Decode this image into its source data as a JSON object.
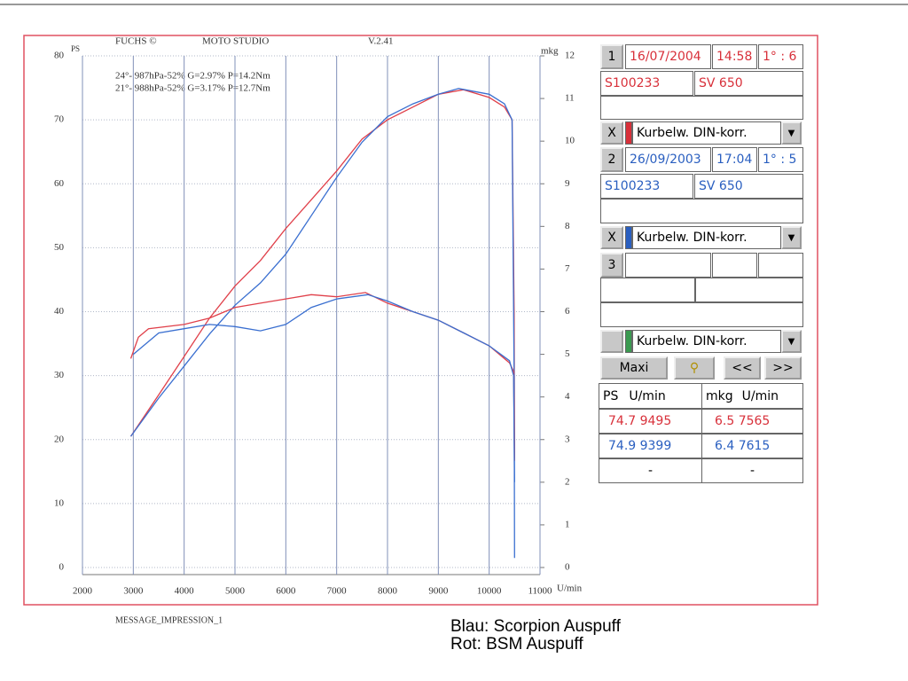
{
  "header": {
    "brand": "FUCHS ©",
    "studio": "MOTO STUDIO",
    "version": "V.2.41"
  },
  "chart_data": {
    "type": "line",
    "y_label": "PS",
    "y2_label": "mkg",
    "x_label": "U/min",
    "annotations": [
      {
        "text": "24°- 987hPa-52% G=2.97% P=14.2Nm",
        "color": "#e0404a"
      },
      {
        "text": "21°- 988hPa-52% G=3.17% P=12.7Nm",
        "color": "#3a6fd0"
      }
    ],
    "xlim": [
      2000,
      11000
    ],
    "xticks": [
      2000,
      3000,
      4000,
      5000,
      6000,
      7000,
      8000,
      9000,
      10000,
      11000
    ],
    "ylim": [
      0,
      80
    ],
    "yticks": [
      0,
      10,
      20,
      30,
      40,
      50,
      60,
      70,
      80
    ],
    "y2lim": [
      0,
      12
    ],
    "y2ticks": [
      0,
      1,
      2,
      3,
      4,
      5,
      6,
      7,
      8,
      9,
      10,
      11,
      12
    ],
    "grid": true,
    "series": [
      {
        "color": "#e0404a",
        "x": [
          2950,
          3500,
          4000,
          4500,
          5000,
          5500,
          6000,
          6500,
          7000,
          7500,
          8000,
          8500,
          9000,
          9495,
          10000,
          10300,
          10450,
          10490,
          10500
        ],
        "values": [
          20.5,
          27,
          33,
          39,
          44,
          48,
          53,
          57.5,
          62,
          67,
          70,
          72,
          74,
          74.7,
          73.5,
          72,
          70,
          40,
          17
        ]
      },
      {
        "color": "#3a6fd0",
        "x": [
          2950,
          3500,
          4000,
          4500,
          5000,
          5500,
          6000,
          6500,
          7000,
          7500,
          8000,
          8500,
          9000,
          9399,
          10000,
          10300,
          10450,
          10490,
          10500
        ],
        "values": [
          20.5,
          26.5,
          31.5,
          36.5,
          41,
          44.5,
          49,
          55,
          61,
          66.5,
          70.5,
          72.5,
          74,
          74.9,
          74,
          72.5,
          70,
          30,
          1.5
        ]
      },
      {
        "axis": "y2",
        "color": "#e0404a",
        "x": [
          2950,
          3100,
          3300,
          4000,
          4500,
          5000,
          5500,
          6000,
          6500,
          7000,
          7565,
          8000,
          8500,
          9000,
          9500,
          10000,
          10400,
          10480,
          10500
        ],
        "values": [
          4.9,
          5.4,
          5.6,
          5.7,
          5.85,
          6.1,
          6.2,
          6.3,
          6.4,
          6.35,
          6.45,
          6.2,
          6.0,
          5.8,
          5.5,
          5.2,
          4.8,
          4.6,
          2.5
        ]
      },
      {
        "axis": "y2",
        "color": "#3a6fd0",
        "x": [
          3000,
          3500,
          4000,
          4500,
          5000,
          5500,
          6000,
          6500,
          7000,
          7615,
          8000,
          8500,
          9000,
          9500,
          10000,
          10400,
          10480,
          10500
        ],
        "values": [
          5.0,
          5.5,
          5.6,
          5.7,
          5.65,
          5.55,
          5.7,
          6.1,
          6.3,
          6.4,
          6.25,
          6.0,
          5.8,
          5.5,
          5.2,
          4.85,
          4.5,
          2.0
        ]
      }
    ]
  },
  "panel": {
    "run1": {
      "number": "1",
      "date": "16/07/2004",
      "time": "14:58",
      "ratio": "1° : 6",
      "id": "S100233",
      "model": "SV 650",
      "close": "X",
      "mode": "Kurbelw. DIN-korr."
    },
    "run2": {
      "number": "2",
      "date": "26/09/2003",
      "time": "17:04",
      "ratio": "1° : 5",
      "id": "S100233",
      "model": "SV 650",
      "close": "X",
      "mode": "Kurbelw. DIN-korr."
    },
    "run3": {
      "number": "3",
      "mode": "Kurbelw. DIN-korr."
    },
    "buttons": {
      "maxi": "Maxi",
      "prev": "<<",
      "next": ">>"
    },
    "table": {
      "header": [
        "PS",
        "U/min",
        "mkg",
        "U/min"
      ],
      "rows": [
        [
          "74.7 9495",
          "6.5 7565"
        ],
        [
          "74.9 9399",
          "6.4 7615"
        ],
        [
          "-",
          "-"
        ]
      ]
    }
  },
  "footer": {
    "message": "MESSAGE_IMPRESSION_1",
    "blue": "Blau: Scorpion Auspuff",
    "red": "Rot: BSM Auspuff"
  }
}
